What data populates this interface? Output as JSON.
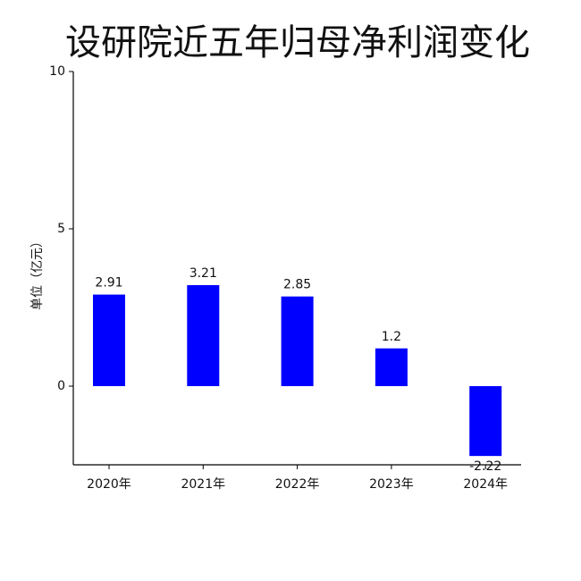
{
  "chart_data": {
    "type": "bar",
    "title": "设研院近五年归母净利润变化",
    "y_label": "单位（亿元）",
    "categories": [
      "2020年",
      "2021年",
      "2022年",
      "2023年",
      "2024年"
    ],
    "values": [
      2.91,
      3.21,
      2.85,
      1.2,
      -2.22
    ],
    "color": "#0000ff",
    "ylim": [
      -2.5,
      10
    ],
    "yticks": [
      0,
      5,
      10
    ],
    "grid": false
  }
}
